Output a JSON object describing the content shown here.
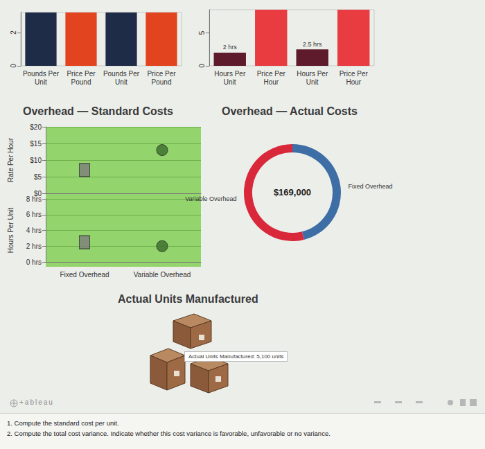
{
  "chart_data": [
    {
      "type": "bar",
      "categories": [
        "Pounds Per Unit",
        "Price Per Pound",
        "Pounds Per Unit",
        "Price Per Pound"
      ],
      "values": [
        3.2,
        3.2,
        3.2,
        3.2
      ],
      "colors": [
        "#1f2c47",
        "#e2441f",
        "#1f2c47",
        "#e2441f"
      ],
      "ylim": [
        0,
        3.2
      ],
      "yticks": [
        0,
        2
      ],
      "grid": false
    },
    {
      "type": "bar",
      "categories": [
        "Hours Per Unit",
        "Price Per Hour",
        "Hours Per Unit",
        "Price Per Hour"
      ],
      "values": [
        2,
        8.5,
        2.5,
        8.5
      ],
      "value_labels": [
        "2 hrs",
        null,
        "2.5 hrs",
        null
      ],
      "data_labels": true,
      "colors": [
        "#5e1b2b",
        "#e83c40",
        "#5e1b2b",
        "#e83c40"
      ],
      "ylim": [
        0,
        8.5
      ],
      "yticks": [
        0,
        5
      ],
      "grid": false
    },
    {
      "type": "scatter",
      "title": "Overhead — Standard Costs",
      "ylabel": "Rate Per Hour",
      "categories": [
        null,
        null
      ],
      "series": [
        {
          "values": [
            7,
            null
          ],
          "marker": "rect",
          "color": "#7d7d7d"
        },
        {
          "values": [
            null,
            13
          ],
          "marker": "circle",
          "color": "#3b6b2c"
        }
      ],
      "ylim": [
        0,
        20
      ],
      "yticks": [
        {
          "value": 0,
          "label": "$0"
        },
        {
          "value": 5,
          "label": "$5"
        },
        {
          "value": 10,
          "label": "$10"
        },
        {
          "value": 15,
          "label": "$15"
        },
        {
          "value": 20,
          "label": "$20"
        }
      ],
      "grid": true,
      "tick_labels": "y"
    },
    {
      "type": "scatter",
      "ylabel": "Hours Per Unit",
      "categories": [
        "Fixed Overhead",
        "Variable Overhead"
      ],
      "series": [
        {
          "values": [
            2.5,
            null
          ],
          "marker": "rect",
          "color": "#7d7d7d"
        },
        {
          "values": [
            null,
            2
          ],
          "marker": "circle",
          "color": "#3b6b2c"
        }
      ],
      "ylim": [
        0,
        8
      ],
      "yticks": [
        {
          "value": 0,
          "label": "0 hrs"
        },
        {
          "value": 2,
          "label": "2 hrs"
        },
        {
          "value": 4,
          "label": "4 hrs"
        },
        {
          "value": 6,
          "label": "6 hrs"
        },
        {
          "value": 8,
          "label": "8 hrs"
        }
      ],
      "grid": true
    },
    {
      "type": "pie",
      "title": "Overhead — Actual Costs",
      "categories": [
        "Fixed Overhead",
        "Variable Overhead"
      ],
      "values": [
        78000,
        91000
      ],
      "colors": [
        "#3e6ea6",
        "#d8283a"
      ],
      "center_text": "$169,000"
    }
  ],
  "units_panel": {
    "title": "Actual Units Manufactured",
    "tooltip": "Actual Units Manufactured: 5,100 units"
  },
  "logo": "+ableau",
  "questions": [
    "1. Compute the standard cost per unit.",
    "2. Compute the total cost variance. Indicate whether this cost variance is favorable, unfavorable or no variance."
  ]
}
